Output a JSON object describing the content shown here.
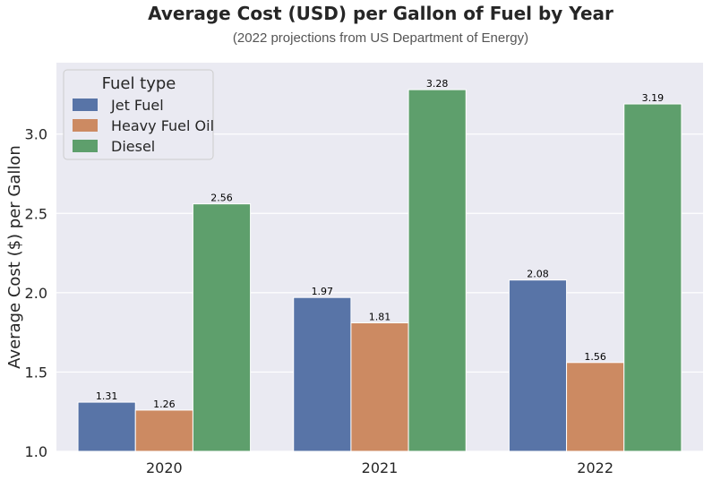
{
  "chart_data": {
    "type": "bar",
    "title": "Average Cost (USD) per Gallon of Fuel by Year",
    "subtitle": "(2022 projections from US Department of Energy)",
    "xlabel": "",
    "ylabel": "Average Cost ($) per Gallon",
    "categories": [
      "2020",
      "2021",
      "2022"
    ],
    "ylim": [
      1.0,
      3.45
    ],
    "yticks": [
      1.0,
      1.5,
      2.0,
      2.5,
      3.0
    ],
    "ytick_labels": [
      "1.0",
      "1.5",
      "2.0",
      "2.5",
      "3.0"
    ],
    "grid": true,
    "legend": {
      "title": "Fuel type",
      "position": "top-left"
    },
    "series": [
      {
        "name": "Jet Fuel",
        "color": "#5874a7",
        "values": [
          1.31,
          1.97,
          2.08
        ],
        "labels": [
          "1.31",
          "1.97",
          "2.08"
        ]
      },
      {
        "name": "Heavy Fuel Oil",
        "color": "#cc8a62",
        "values": [
          1.26,
          1.81,
          1.56
        ],
        "labels": [
          "1.26",
          "1.81",
          "1.56"
        ]
      },
      {
        "name": "Diesel",
        "color": "#5e9f6c",
        "values": [
          2.56,
          3.28,
          3.19
        ],
        "labels": [
          "2.56",
          "3.28",
          "3.19"
        ]
      }
    ]
  }
}
